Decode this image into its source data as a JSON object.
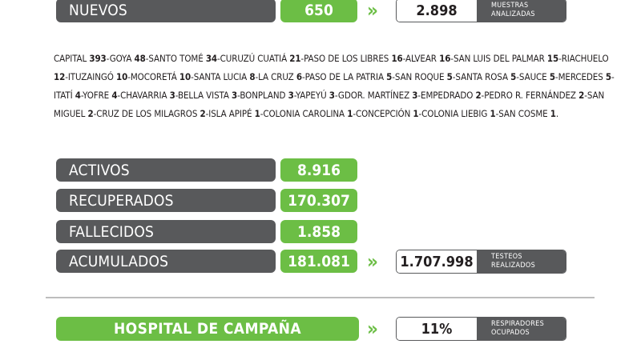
{
  "nuevos": {
    "label": "NUEVOS",
    "value": "650"
  },
  "muestras": {
    "value": "2.898",
    "caption_line1": "MUESTRAS",
    "caption_line2": "ANALIZADAS"
  },
  "cities": [
    {
      "name": "CAPITAL",
      "count": "393"
    },
    {
      "name": "GOYA",
      "count": "48"
    },
    {
      "name": "SANTO TOMÉ",
      "count": "34"
    },
    {
      "name": "CURUZÚ CUATIÁ",
      "count": "21"
    },
    {
      "name": "PASO DE LOS LIBRES",
      "count": "16"
    },
    {
      "name": "ALVEAR",
      "count": "16"
    },
    {
      "name": "SAN LUIS DEL PALMAR",
      "count": "15"
    },
    {
      "name": "RIACHUELO",
      "count": "12"
    },
    {
      "name": "ITUZAINGÓ",
      "count": "10"
    },
    {
      "name": "MOCORETÁ",
      "count": "10"
    },
    {
      "name": "SANTA LUCIA",
      "count": "8"
    },
    {
      "name": "LA CRUZ",
      "count": "6"
    },
    {
      "name": "PASO DE LA PATRIA",
      "count": "5"
    },
    {
      "name": "SAN ROQUE",
      "count": "5"
    },
    {
      "name": "SANTA ROSA",
      "count": "5"
    },
    {
      "name": "SAUCE",
      "count": "5"
    },
    {
      "name": "MERCEDES",
      "count": "5"
    },
    {
      "name": "ITATÍ",
      "count": "4"
    },
    {
      "name": "YOFRE",
      "count": "4"
    },
    {
      "name": "CHAVARRIA",
      "count": "3"
    },
    {
      "name": "BELLA VISTA",
      "count": "3"
    },
    {
      "name": "BONPLAND",
      "count": "3"
    },
    {
      "name": "YAPEYÚ",
      "count": "3"
    },
    {
      "name": "GDOR. MARTÍNEZ",
      "count": "3"
    },
    {
      "name": "EMPEDRADO",
      "count": "2"
    },
    {
      "name": "PEDRO R. FERNÁNDEZ",
      "count": "2"
    },
    {
      "name": "SAN MIGUEL",
      "count": "2"
    },
    {
      "name": "CRUZ DE LOS MILAGROS",
      "count": "2"
    },
    {
      "name": "ISLA APIPÉ",
      "count": "1"
    },
    {
      "name": "COLONIA CAROLINA",
      "count": "1"
    },
    {
      "name": "CONCEPCIÓN",
      "count": "1"
    },
    {
      "name": "COLONIA LIEBIG",
      "count": "1"
    },
    {
      "name": "SAN COSME",
      "count": "1"
    }
  ],
  "stats": {
    "activos": {
      "label": "ACTIVOS",
      "value": "8.916"
    },
    "recuperados": {
      "label": "RECUPERADOS",
      "value": "170.307"
    },
    "fallecidos": {
      "label": "FALLECIDOS",
      "value": "1.858"
    },
    "acumulados": {
      "label": "ACUMULADOS",
      "value": "181.081"
    }
  },
  "testeos": {
    "value": "1.707.998",
    "caption_line1": "TESTEOS",
    "caption_line2": "REALIZADOS"
  },
  "hospital": {
    "label": "HOSPITAL DE CAMPAÑA",
    "value": "11%",
    "caption_line1": "RESPIRADORES",
    "caption_line2": "OCUPADOS"
  },
  "chevron": "»",
  "colors": {
    "green": "#6cbe45",
    "dark": "#58595b"
  }
}
